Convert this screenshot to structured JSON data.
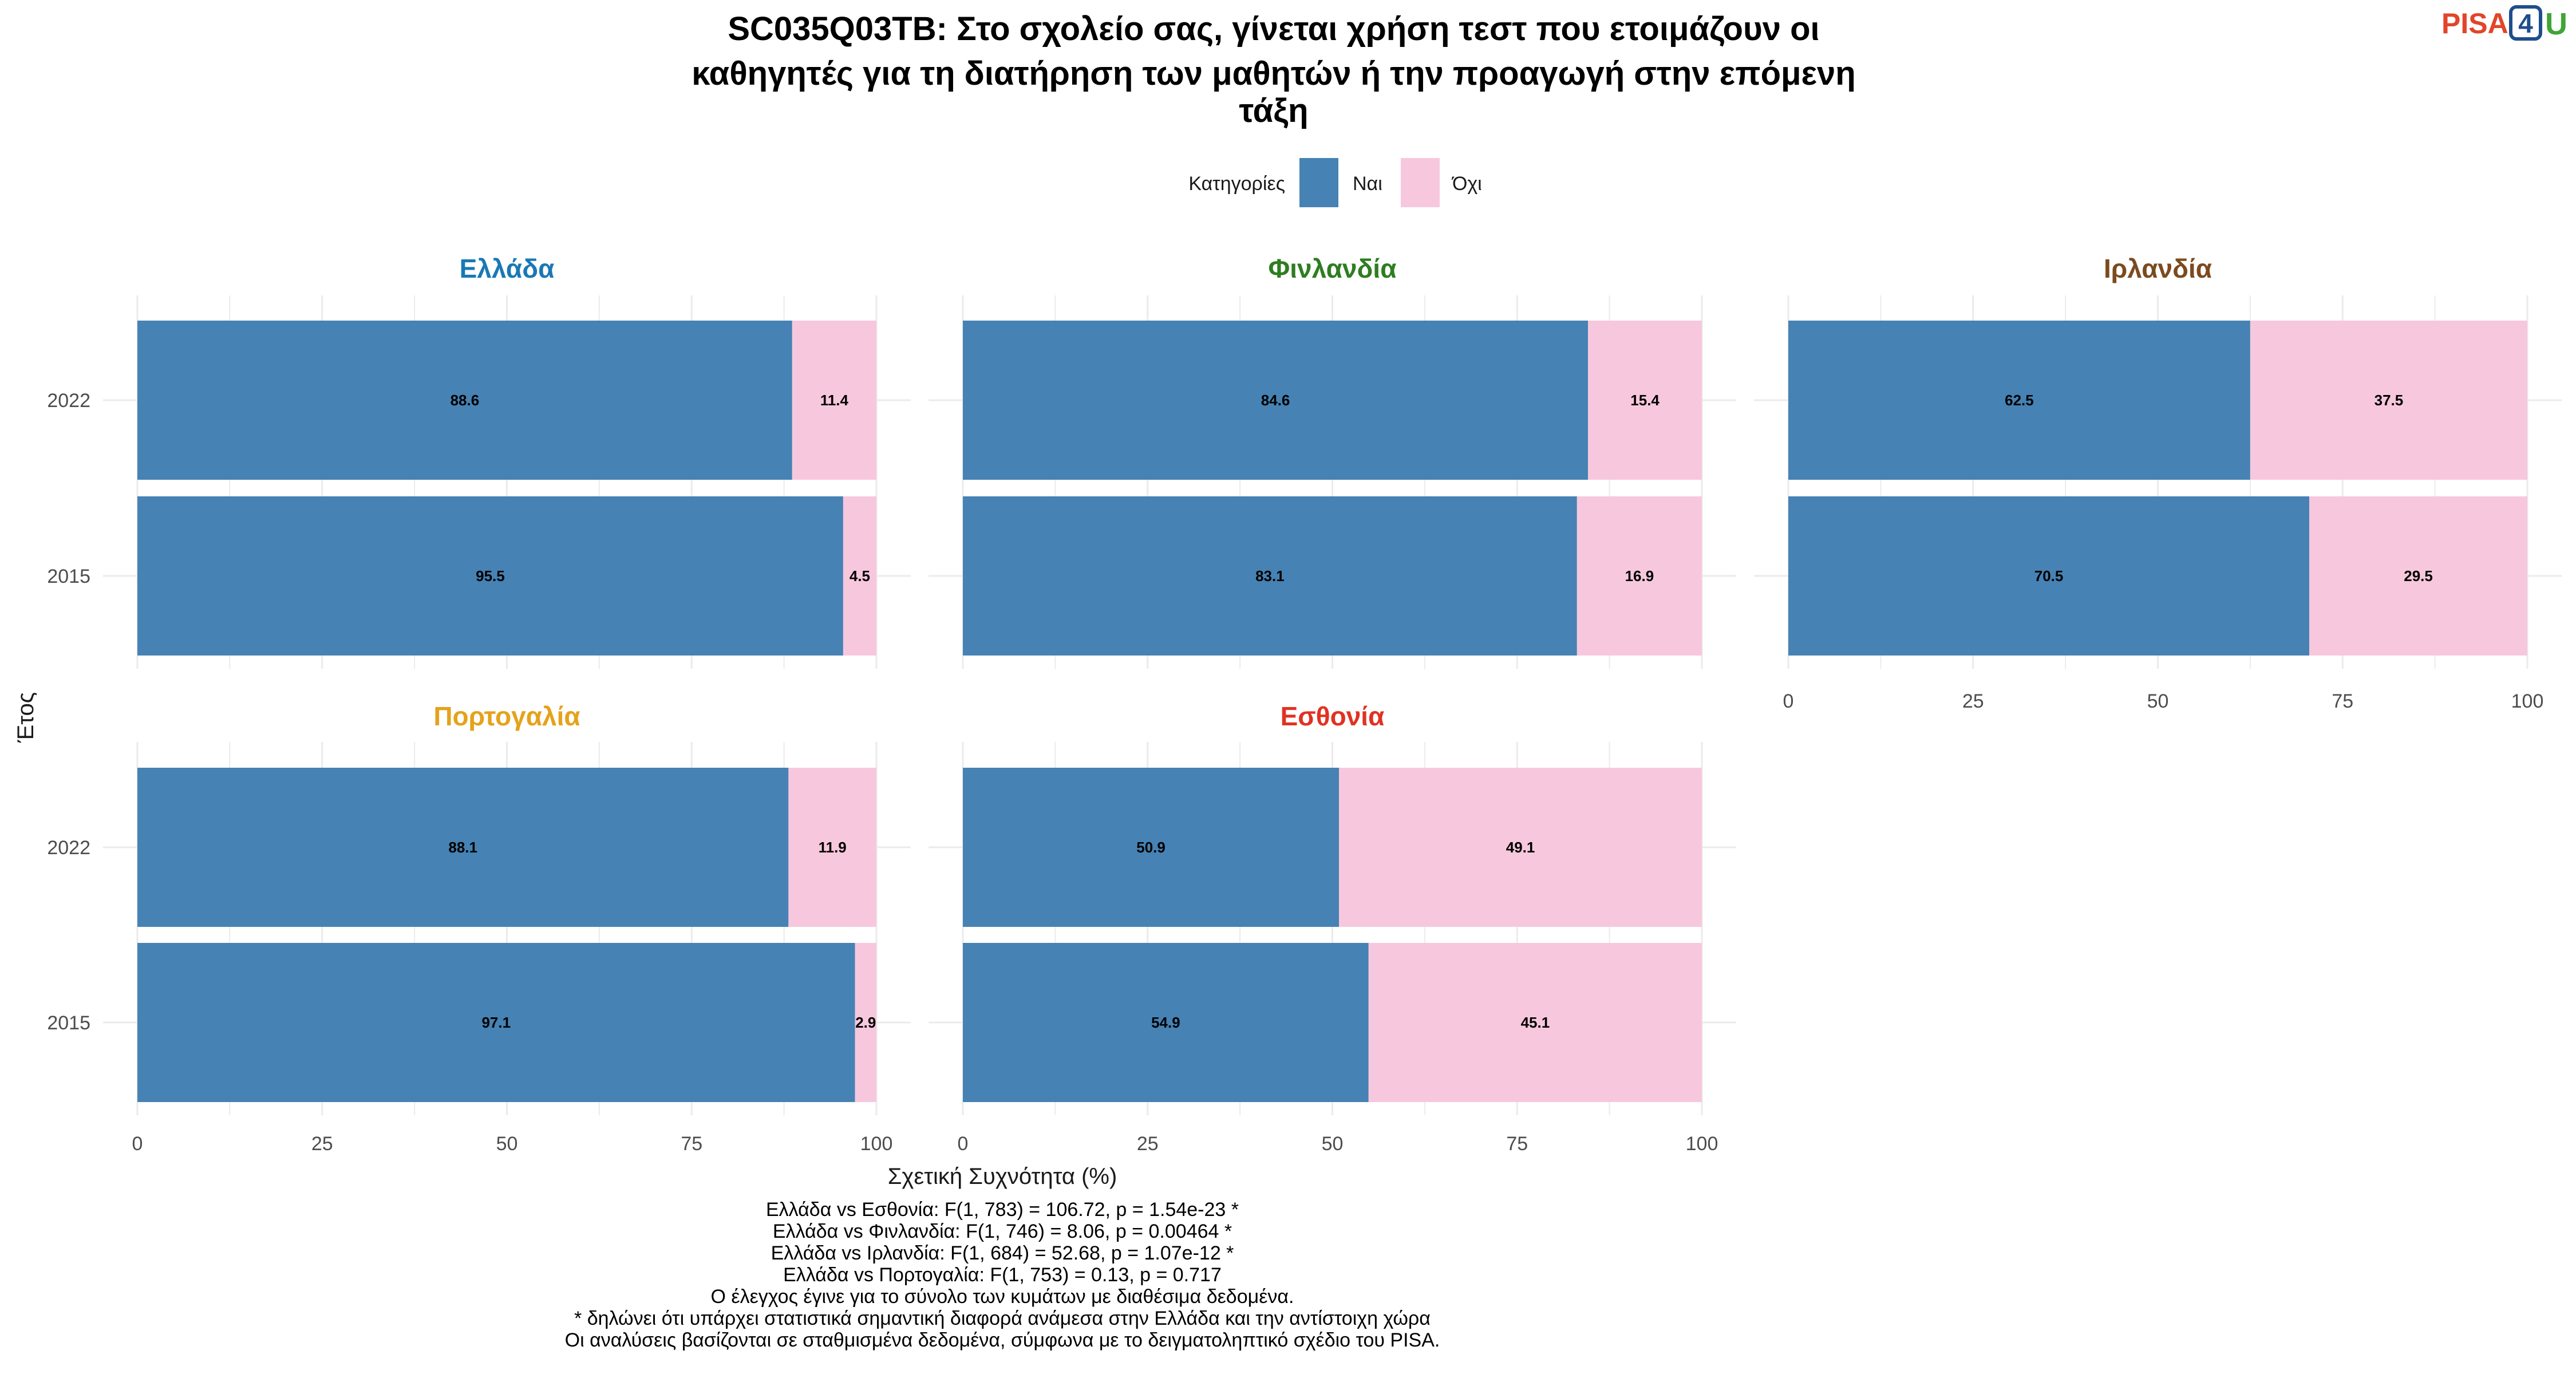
{
  "title_lines": [
    "SC035Q03TB: Στο σχολείο σας, γίνεται χρήση τεστ που ετοιμάζουν οι",
    "καθηγητές για τη διατήρηση των μαθητών ή την προαγωγή στην επόμενη",
    "τάξη"
  ],
  "logo": {
    "text_pisa": "PISA",
    "text_4": "4",
    "text_u": "U"
  },
  "legend": {
    "title": "Κατηγορίες",
    "items": [
      {
        "label": "Ναι",
        "color": "#4682B4"
      },
      {
        "label": "Όχι",
        "color": "#F7C8DD"
      }
    ]
  },
  "axis": {
    "ylabel": "Έτος",
    "xlabel": "Σχετική Συχνότητα (%)",
    "xticks": [
      "0",
      "25",
      "50",
      "75",
      "100"
    ]
  },
  "footer_lines": [
    "Ελλάδα vs Εσθονία: F(1, 783) = 106.72, p = 1.54e-23 *",
    "Ελλάδα vs Φινλανδία: F(1, 746) = 8.06, p = 0.00464 *",
    "Ελλάδα vs Ιρλανδία: F(1, 684) = 52.68, p = 1.07e-12 *",
    "Ελλάδα vs Πορτογαλία: F(1, 753) = 0.13, p = 0.717",
    "Ο έλεγχος έγινε για το σύνολο των κυμάτων με διαθέσιμα δεδομένα.",
    "* δηλώνει ότι υπάρχει στατιστικά σημαντική διαφορά ανάμεσα στην Ελλάδα και την αντίστοιχη χώρα",
    "Οι αναλύσεις βασίζονται σε σταθμισμένα δεδομένα, σύμφωνα με το δειγματοληπτικό σχέδιο του PISA."
  ],
  "chart_data": {
    "type": "bar",
    "orientation": "horizontal-stacked",
    "categories": [
      "2022",
      "2015"
    ],
    "xlim": [
      0,
      100
    ],
    "grid": true,
    "legend_position": "top",
    "series_names": [
      "Ναι",
      "Όχι"
    ],
    "series_colors": [
      "#4682B4",
      "#F7C8DD"
    ],
    "facets": [
      {
        "name": "Ελλάδα",
        "color": "#1A78B5",
        "values": {
          "Ναι": [
            88.6,
            95.5
          ],
          "Όχι": [
            11.4,
            4.5
          ]
        }
      },
      {
        "name": "Φινλανδία",
        "color": "#2E7D1F",
        "values": {
          "Ναι": [
            84.6,
            83.1
          ],
          "Όχι": [
            15.4,
            16.9
          ]
        }
      },
      {
        "name": "Ιρλανδία",
        "color": "#7B4A1E",
        "values": {
          "Ναι": [
            62.5,
            70.5
          ],
          "Όχι": [
            37.5,
            29.5
          ]
        }
      },
      {
        "name": "Πορτογαλία",
        "color": "#E5A21A",
        "values": {
          "Ναι": [
            88.1,
            97.1
          ],
          "Όχι": [
            11.9,
            2.9
          ]
        }
      },
      {
        "name": "Εσθονία",
        "color": "#E03222",
        "values": {
          "Ναι": [
            50.9,
            54.9
          ],
          "Όχι": [
            49.1,
            45.1
          ]
        }
      }
    ]
  }
}
